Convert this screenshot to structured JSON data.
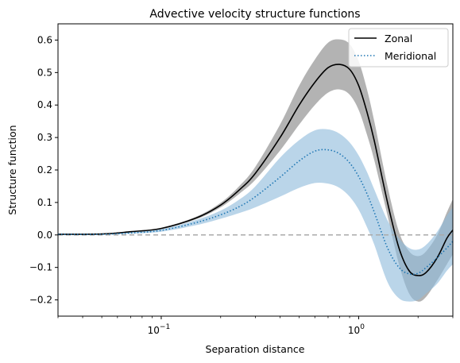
{
  "chart_data": {
    "type": "line",
    "title": "Advective velocity structure functions",
    "xlabel": "Separation distance",
    "ylabel": "Structure function",
    "xscale": "log",
    "xlim": [
      0.03,
      3.0
    ],
    "ylim": [
      -0.25,
      0.65
    ],
    "xticks": [
      {
        "value": 0.1,
        "label": "10",
        "exp": "−1"
      },
      {
        "value": 1.0,
        "label": "10",
        "exp": "0"
      }
    ],
    "yticks": [
      {
        "value": -0.2,
        "label": "−0.2"
      },
      {
        "value": -0.1,
        "label": "−0.1"
      },
      {
        "value": 0.0,
        "label": "0.0"
      },
      {
        "value": 0.1,
        "label": "0.1"
      },
      {
        "value": 0.2,
        "label": "0.2"
      },
      {
        "value": 0.3,
        "label": "0.3"
      },
      {
        "value": 0.4,
        "label": "0.4"
      },
      {
        "value": 0.5,
        "label": "0.5"
      },
      {
        "value": 0.6,
        "label": "0.6"
      }
    ],
    "grid": false,
    "legend_position": "top-right",
    "reference_line": {
      "y": 0.0,
      "style": "dashed",
      "color": "#aaaaaa"
    },
    "x": [
      0.03,
      0.05,
      0.07,
      0.1,
      0.15,
      0.2,
      0.25,
      0.3,
      0.4,
      0.5,
      0.6,
      0.7,
      0.8,
      0.9,
      1.0,
      1.1,
      1.2,
      1.4,
      1.6,
      1.8,
      2.0,
      2.2,
      2.5,
      2.8,
      3.0
    ],
    "series": [
      {
        "name": "Zonal",
        "color": "#000000",
        "dash": "solid",
        "band_color": "#808080",
        "values": [
          0.002,
          0.003,
          0.01,
          0.02,
          0.052,
          0.092,
          0.14,
          0.19,
          0.3,
          0.4,
          0.47,
          0.515,
          0.525,
          0.51,
          0.46,
          0.38,
          0.29,
          0.1,
          -0.04,
          -0.11,
          -0.125,
          -0.115,
          -0.07,
          -0.01,
          0.015
        ],
        "lower": [
          0.002,
          0.003,
          0.01,
          0.019,
          0.048,
          0.085,
          0.128,
          0.17,
          0.26,
          0.34,
          0.4,
          0.438,
          0.448,
          0.432,
          0.385,
          0.31,
          0.23,
          0.06,
          -0.09,
          -0.18,
          -0.205,
          -0.19,
          -0.14,
          -0.09,
          -0.06
        ],
        "upper": [
          0.002,
          0.004,
          0.011,
          0.022,
          0.056,
          0.099,
          0.152,
          0.21,
          0.34,
          0.46,
          0.54,
          0.592,
          0.602,
          0.588,
          0.535,
          0.45,
          0.35,
          0.15,
          0.01,
          -0.05,
          -0.065,
          -0.05,
          0.0,
          0.07,
          0.11
        ]
      },
      {
        "name": "Meridional",
        "color": "#1f77b4",
        "dash": "dotted",
        "band_color": "#8fbcdb",
        "values": [
          0.002,
          0.002,
          0.006,
          0.014,
          0.038,
          0.062,
          0.088,
          0.118,
          0.178,
          0.228,
          0.258,
          0.262,
          0.25,
          0.222,
          0.18,
          0.128,
          0.07,
          -0.04,
          -0.1,
          -0.12,
          -0.118,
          -0.1,
          -0.07,
          -0.04,
          -0.02
        ],
        "lower": [
          0.001,
          0.001,
          0.004,
          0.01,
          0.03,
          0.05,
          0.068,
          0.085,
          0.118,
          0.145,
          0.16,
          0.158,
          0.145,
          0.118,
          0.078,
          0.025,
          -0.03,
          -0.145,
          -0.195,
          -0.205,
          -0.2,
          -0.18,
          -0.15,
          -0.11,
          -0.09
        ],
        "upper": [
          0.003,
          0.003,
          0.008,
          0.018,
          0.046,
          0.075,
          0.11,
          0.15,
          0.238,
          0.292,
          0.322,
          0.325,
          0.312,
          0.285,
          0.245,
          0.195,
          0.14,
          0.045,
          -0.01,
          -0.04,
          -0.045,
          -0.03,
          0.01,
          0.06,
          0.085
        ]
      }
    ]
  }
}
